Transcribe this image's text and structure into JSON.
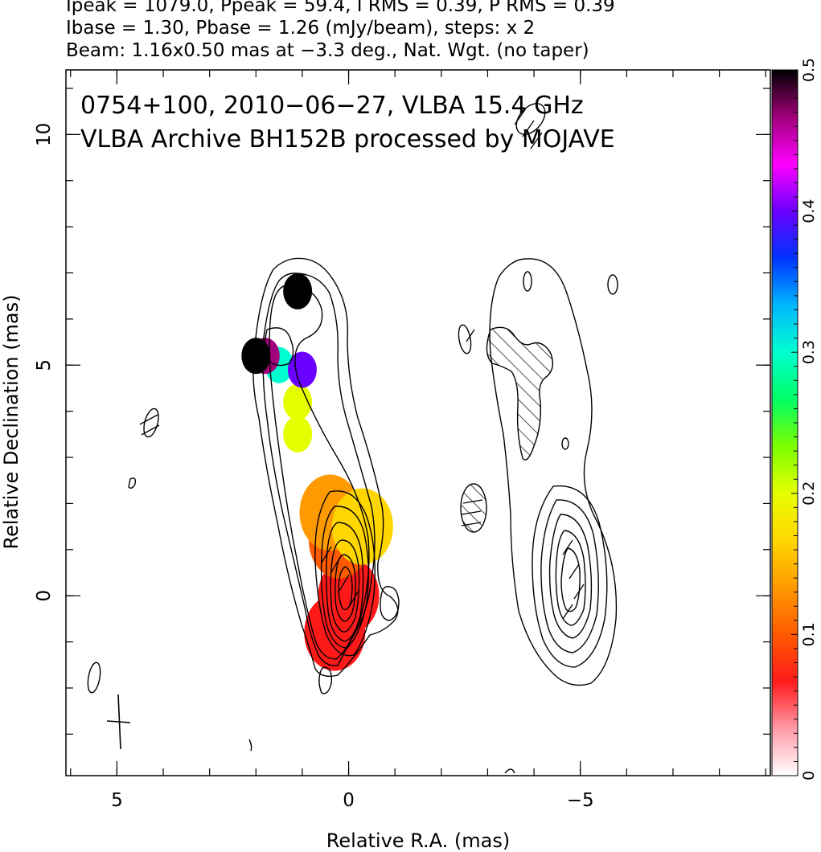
{
  "header": {
    "line1": "Ipeak = 1079.0, Ppeak = 59.4, I RMS = 0.39, P RMS = 0.39",
    "line2": "Ibase = 1.30, Pbase = 1.26 (mJy/beam), steps: x 2",
    "line3": "Beam: 1.16x0.50 mas at −3.3 deg., Nat. Wgt. (no taper)"
  },
  "chart_data": {
    "type": "heatmap",
    "title": "0754+100, 2010−06−27, VLBA 15.4 GHz",
    "subtitle": "VLBA Archive BH152B processed by MOJAVE",
    "xlabel": "Relative R.A. (mas)",
    "ylabel": "Relative Declination (mas)",
    "xlim": [
      6.1,
      -9.1
    ],
    "ylim": [
      -3.9,
      11.4
    ],
    "x_tick_labels": [
      "5",
      "0",
      "−5"
    ],
    "x_ticks": [
      5,
      0,
      -5
    ],
    "y_tick_labels": [
      "0",
      "5",
      "10"
    ],
    "y_ticks": [
      0,
      5,
      10
    ],
    "colorbar": {
      "range": [
        0,
        0.5
      ],
      "ticks": [
        0,
        0.1,
        0.2,
        0.3,
        0.4,
        0.5
      ],
      "tick_labels": [
        "0",
        "0.1",
        "0.2",
        "0.3",
        "0.4",
        "0.5"
      ],
      "colors": [
        "#ffffff",
        "#ff9aa8",
        "#ff1a1a",
        "#ff5a00",
        "#ff9a00",
        "#ffd600",
        "#e6ff00",
        "#7cff00",
        "#00ff66",
        "#00ffd0",
        "#00b6ff",
        "#0033ff",
        "#6a00ff",
        "#ff00ff",
        "#a0007a",
        "#000000"
      ]
    },
    "fractional_polarization_regions": [
      {
        "x": 0.0,
        "y": 0.0,
        "value": 0.06
      },
      {
        "x": 0.3,
        "y": -0.8,
        "value": 0.07
      },
      {
        "x": 0.2,
        "y": 1.2,
        "value": 0.1
      },
      {
        "x": 0.4,
        "y": 1.8,
        "value": 0.12
      },
      {
        "x": -0.3,
        "y": 1.5,
        "value": 0.15
      },
      {
        "x": 1.1,
        "y": 3.5,
        "value": 0.19
      },
      {
        "x": 1.1,
        "y": 4.2,
        "value": 0.2
      },
      {
        "x": 1.5,
        "y": 5.0,
        "value": 0.3
      },
      {
        "x": 1.0,
        "y": 4.9,
        "value": 0.4
      },
      {
        "x": 1.8,
        "y": 5.2,
        "value": 0.45
      },
      {
        "x": 2.0,
        "y": 5.2,
        "value": 0.5
      },
      {
        "x": 1.1,
        "y": 6.6,
        "value": 0.5
      }
    ],
    "left_panel_contours_mJy_per_beam": [
      1.3,
      2.6,
      5.2,
      10.4,
      20.8,
      41.6,
      83.2,
      166.4,
      332.8,
      665.6
    ],
    "right_panel_contours_mJy_per_beam": [
      1.26,
      2.52,
      5.04,
      10.08,
      20.16,
      40.32
    ],
    "restoring_beam": {
      "major_mas": 1.16,
      "minor_mas": 0.5,
      "pa_deg": -3.3
    }
  }
}
